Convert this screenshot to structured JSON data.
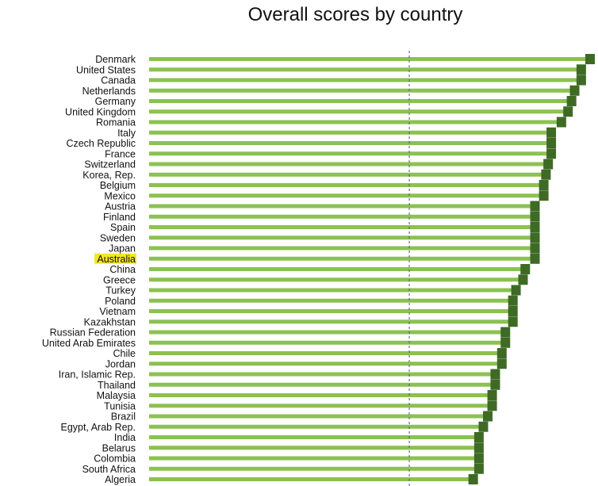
{
  "chart_data": {
    "type": "bar",
    "orientation": "horizontal",
    "title": "Overall scores by country",
    "categories": [
      "Denmark",
      "United States",
      "Canada",
      "Netherlands",
      "Germany",
      "United Kingdom",
      "Romania",
      "Italy",
      "Czech Republic",
      "France",
      "Switzerland",
      "Korea, Rep.",
      "Belgium",
      "Mexico",
      "Austria",
      "Finland",
      "Spain",
      "Sweden",
      "Japan",
      "Australia",
      "China",
      "Greece",
      "Turkey",
      "Poland",
      "Vietnam",
      "Kazakhstan",
      "Russian Federation",
      "United Arab Emirates",
      "Chile",
      "Jordan",
      "Iran, Islamic Rep.",
      "Thailand",
      "Malaysia",
      "Tunisia",
      "Brazil",
      "Egypt, Arab Rep.",
      "India",
      "Belarus",
      "Colombia",
      "South Africa",
      "Algeria"
    ],
    "values": [
      100,
      98,
      98,
      96.5,
      95.8,
      95,
      93.5,
      91.2,
      91.2,
      91.2,
      90.5,
      90,
      89.5,
      89.5,
      87.5,
      87.5,
      87.5,
      87.5,
      87.5,
      87.5,
      85.3,
      84.8,
      83.2,
      82.5,
      82.5,
      82.5,
      80.8,
      80.8,
      80,
      80,
      78.5,
      78.5,
      77.8,
      77.8,
      76.8,
      75.8,
      74.8,
      74.8,
      74.8,
      74.8,
      73.5
    ],
    "highlight": "Australia",
    "reference_line": 59,
    "xlim": [
      0,
      100
    ],
    "colors": {
      "bar": "#8cc152",
      "marker": "#3e6a26",
      "highlight": "#f5e625",
      "reference": "#555577"
    }
  }
}
